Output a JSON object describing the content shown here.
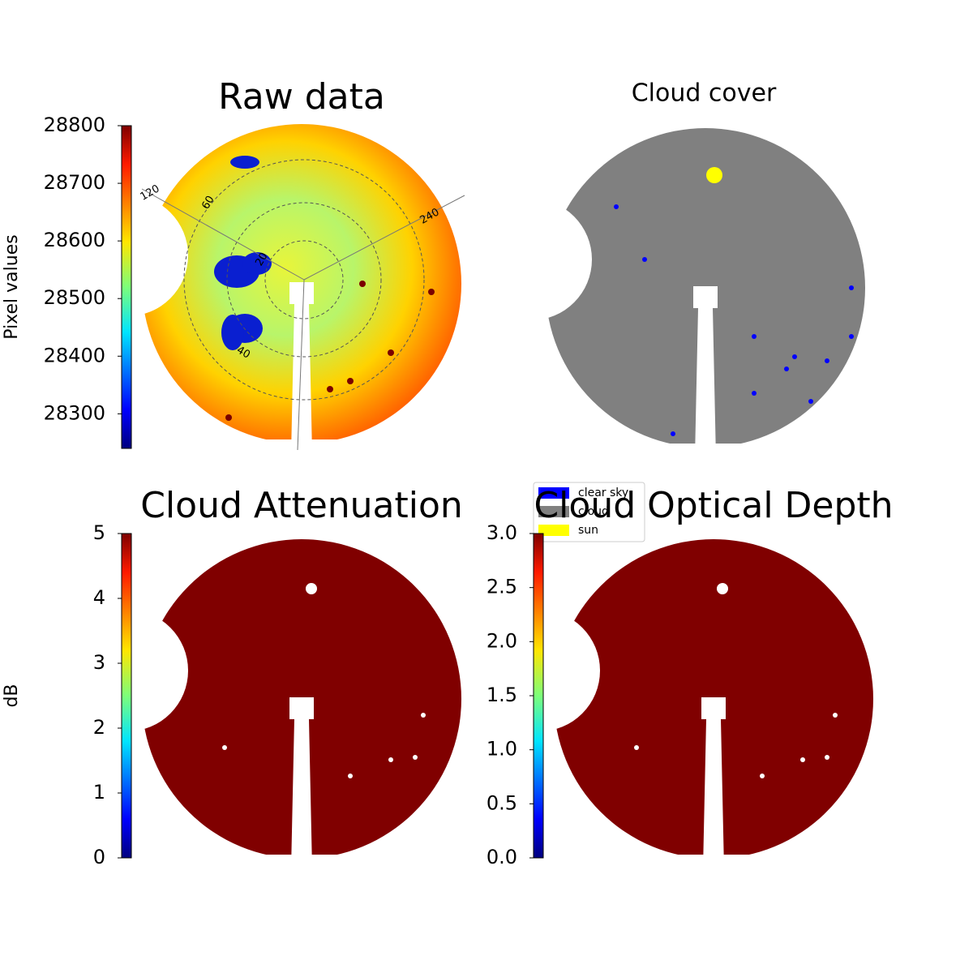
{
  "chart_data": [
    {
      "type": "image",
      "title": "Raw data",
      "colorbar": {
        "label": "Pixel values",
        "lim": [
          28240,
          28800
        ],
        "ticks": [
          28300,
          28400,
          28500,
          28600,
          28700,
          28800
        ]
      },
      "polar_labels": [
        "120",
        "60",
        "20",
        "40",
        "240"
      ]
    },
    {
      "type": "image",
      "title": "Cloud cover",
      "legend": [
        {
          "name": "clear sky",
          "color": "#0000ff"
        },
        {
          "name": "cloud",
          "color": "#808080"
        },
        {
          "name": "sun",
          "color": "#ffff00"
        }
      ]
    },
    {
      "type": "image",
      "title": "Cloud Attenuation",
      "colorbar": {
        "label": "dB",
        "lim": [
          0,
          5
        ],
        "ticks": [
          0,
          1,
          2,
          3,
          4,
          5
        ]
      }
    },
    {
      "type": "image",
      "title": "Cloud Optical Depth",
      "colorbar": {
        "lim": [
          0,
          3
        ],
        "ticks": [
          {
            "value": 0,
            "label": "0.0"
          },
          {
            "value": 0.5,
            "label": "0.5"
          },
          {
            "value": 1,
            "label": "1.0"
          },
          {
            "value": 1.5,
            "label": "1.5"
          },
          {
            "value": 2,
            "label": "2.0"
          },
          {
            "value": 2.5,
            "label": "2.5"
          },
          {
            "value": 3,
            "label": "3.0"
          }
        ]
      }
    }
  ]
}
